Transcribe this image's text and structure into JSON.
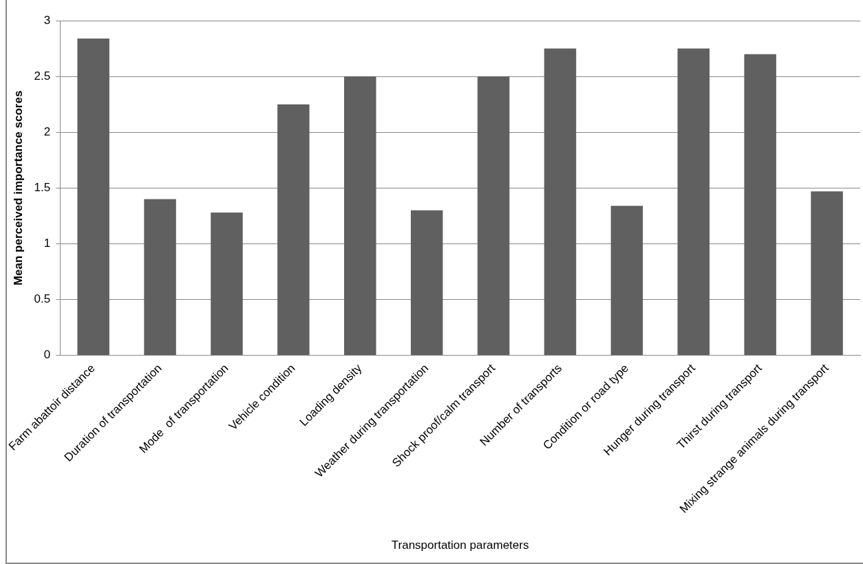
{
  "chart_data": {
    "type": "bar",
    "xlabel": "Transportation parameters",
    "ylabel": "Mean perceived importance scores",
    "categories": [
      "Farm abattoir distance",
      "Duration of transportation",
      "Mode  of transportation",
      "Vehicle condition",
      "Loading density",
      "Weather during transportation",
      "Shock proof/calm transport",
      "Number of transports",
      "Condition or road type",
      "Hunger during transport",
      "Thirst during transport",
      "Mixing strange animals during transport"
    ],
    "values": [
      2.84,
      1.4,
      1.28,
      2.25,
      2.5,
      1.3,
      2.5,
      2.75,
      1.34,
      2.75,
      2.7,
      1.47
    ],
    "color": "#606060",
    "ylim": [
      0,
      3
    ],
    "yticks": [
      0,
      0.5,
      1,
      1.5,
      2,
      2.5,
      3
    ],
    "grid": "y",
    "legend": false
  }
}
